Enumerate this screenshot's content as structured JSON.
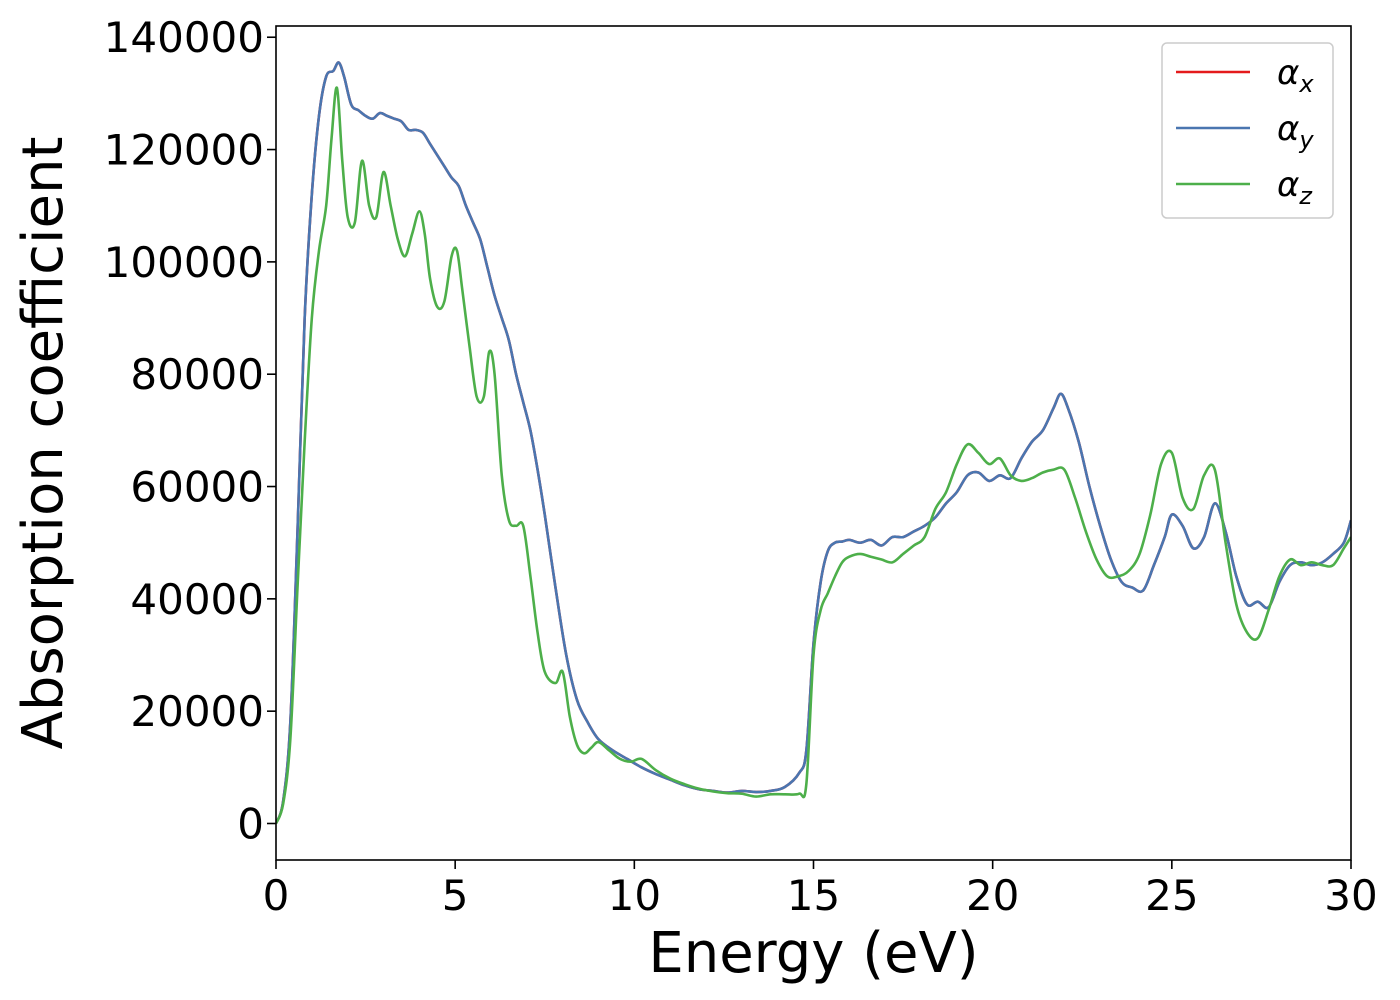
{
  "chart_data": {
    "type": "line",
    "title": "",
    "xlabel": "Energy (eV)",
    "ylabel": "Absorption coefficient",
    "xlim": [
      0,
      30
    ],
    "ylim": [
      -6500,
      142000
    ],
    "x_ticks": [
      0,
      5,
      10,
      15,
      20,
      25,
      30
    ],
    "y_ticks": [
      0,
      20000,
      40000,
      60000,
      80000,
      100000,
      120000,
      140000
    ],
    "grid": false,
    "legend_position": "top-right",
    "series": [
      {
        "name": "α_x",
        "label_base": "α",
        "label_sub": "x",
        "color": "#e41a1c",
        "x": [
          0,
          0.2,
          0.4,
          0.6,
          0.8,
          1.0,
          1.2,
          1.4,
          1.6,
          1.75,
          1.9,
          2.1,
          2.3,
          2.5,
          2.7,
          2.9,
          3.1,
          3.3,
          3.5,
          3.7,
          3.9,
          4.1,
          4.3,
          4.5,
          4.7,
          4.9,
          5.1,
          5.3,
          5.5,
          5.7,
          5.9,
          6.1,
          6.3,
          6.5,
          6.7,
          6.9,
          7.1,
          7.3,
          7.5,
          7.8,
          8.1,
          8.4,
          8.7,
          9.0,
          9.4,
          9.8,
          10.2,
          10.6,
          11.0,
          11.4,
          11.8,
          12.2,
          12.6,
          13.0,
          13.4,
          13.8,
          14.2,
          14.6,
          14.8,
          15.0,
          15.2,
          15.4,
          15.6,
          15.8,
          16.0,
          16.3,
          16.6,
          16.9,
          17.2,
          17.5,
          17.8,
          18.1,
          18.4,
          18.7,
          19.0,
          19.3,
          19.6,
          19.9,
          20.2,
          20.5,
          20.8,
          21.1,
          21.4,
          21.7,
          21.9,
          22.1,
          22.4,
          22.7,
          23.0,
          23.3,
          23.6,
          23.9,
          24.2,
          24.5,
          24.8,
          25.0,
          25.3,
          25.6,
          25.9,
          26.2,
          26.5,
          26.8,
          27.1,
          27.4,
          27.7,
          28.0,
          28.3,
          28.6,
          28.9,
          29.2,
          29.5,
          29.8,
          30.0
        ],
        "y": [
          0,
          4000,
          18000,
          52000,
          90000,
          112000,
          126000,
          133000,
          134000,
          135500,
          133000,
          128000,
          127000,
          126000,
          125500,
          126500,
          126000,
          125500,
          125000,
          123500,
          123500,
          123000,
          121000,
          119000,
          117000,
          115000,
          113500,
          110000,
          107000,
          104000,
          99000,
          94000,
          90000,
          86000,
          80000,
          75000,
          70000,
          63000,
          55000,
          42000,
          30000,
          22000,
          18000,
          15000,
          13000,
          11500,
          10000,
          8800,
          7800,
          6800,
          6100,
          5800,
          5500,
          5800,
          5600,
          5800,
          6500,
          9000,
          13000,
          32000,
          43000,
          48500,
          50000,
          50200,
          50500,
          50000,
          50500,
          49500,
          51000,
          51000,
          52000,
          53000,
          54500,
          57000,
          59000,
          62000,
          62500,
          61000,
          62000,
          61500,
          65000,
          68000,
          70000,
          74000,
          76500,
          74000,
          68000,
          60000,
          53000,
          47000,
          43000,
          42000,
          41500,
          46000,
          51000,
          55000,
          53000,
          49000,
          51000,
          57000,
          52000,
          44000,
          39000,
          39500,
          38500,
          43000,
          46000,
          46500,
          46000,
          46500,
          48000,
          50000,
          54000
        ]
      },
      {
        "name": "α_y",
        "label_base": "α",
        "label_sub": "y",
        "color": "#4a76b0",
        "x": [
          0,
          0.2,
          0.4,
          0.6,
          0.8,
          1.0,
          1.2,
          1.4,
          1.6,
          1.75,
          1.9,
          2.1,
          2.3,
          2.5,
          2.7,
          2.9,
          3.1,
          3.3,
          3.5,
          3.7,
          3.9,
          4.1,
          4.3,
          4.5,
          4.7,
          4.9,
          5.1,
          5.3,
          5.5,
          5.7,
          5.9,
          6.1,
          6.3,
          6.5,
          6.7,
          6.9,
          7.1,
          7.3,
          7.5,
          7.8,
          8.1,
          8.4,
          8.7,
          9.0,
          9.4,
          9.8,
          10.2,
          10.6,
          11.0,
          11.4,
          11.8,
          12.2,
          12.6,
          13.0,
          13.4,
          13.8,
          14.2,
          14.6,
          14.8,
          15.0,
          15.2,
          15.4,
          15.6,
          15.8,
          16.0,
          16.3,
          16.6,
          16.9,
          17.2,
          17.5,
          17.8,
          18.1,
          18.4,
          18.7,
          19.0,
          19.3,
          19.6,
          19.9,
          20.2,
          20.5,
          20.8,
          21.1,
          21.4,
          21.7,
          21.9,
          22.1,
          22.4,
          22.7,
          23.0,
          23.3,
          23.6,
          23.9,
          24.2,
          24.5,
          24.8,
          25.0,
          25.3,
          25.6,
          25.9,
          26.2,
          26.5,
          26.8,
          27.1,
          27.4,
          27.7,
          28.0,
          28.3,
          28.6,
          28.9,
          29.2,
          29.5,
          29.8,
          30.0
        ],
        "y": [
          0,
          4000,
          18000,
          52000,
          90000,
          112000,
          126000,
          133000,
          134000,
          135500,
          133000,
          128000,
          127000,
          126000,
          125500,
          126500,
          126000,
          125500,
          125000,
          123500,
          123500,
          123000,
          121000,
          119000,
          117000,
          115000,
          113500,
          110000,
          107000,
          104000,
          99000,
          94000,
          90000,
          86000,
          80000,
          75000,
          70000,
          63000,
          55000,
          42000,
          30000,
          22000,
          18000,
          15000,
          13000,
          11500,
          10000,
          8800,
          7800,
          6800,
          6100,
          5800,
          5500,
          5800,
          5600,
          5800,
          6500,
          9000,
          13000,
          32000,
          43000,
          48500,
          50000,
          50200,
          50500,
          50000,
          50500,
          49500,
          51000,
          51000,
          52000,
          53000,
          54500,
          57000,
          59000,
          62000,
          62500,
          61000,
          62000,
          61500,
          65000,
          68000,
          70000,
          74000,
          76500,
          74000,
          68000,
          60000,
          53000,
          47000,
          43000,
          42000,
          41500,
          46000,
          51000,
          55000,
          53000,
          49000,
          51000,
          57000,
          52000,
          44000,
          39000,
          39500,
          38500,
          43000,
          46000,
          46500,
          46000,
          46500,
          48000,
          50000,
          54000
        ]
      },
      {
        "name": "α_z",
        "label_base": "α",
        "label_sub": "z",
        "color": "#4daf4a",
        "x": [
          0,
          0.2,
          0.4,
          0.6,
          0.8,
          1.0,
          1.2,
          1.4,
          1.55,
          1.7,
          1.85,
          2.0,
          2.2,
          2.4,
          2.6,
          2.8,
          3.0,
          3.2,
          3.4,
          3.6,
          3.8,
          4.0,
          4.15,
          4.3,
          4.5,
          4.7,
          4.9,
          5.05,
          5.2,
          5.4,
          5.6,
          5.8,
          5.95,
          6.1,
          6.3,
          6.5,
          6.7,
          6.9,
          7.1,
          7.3,
          7.5,
          7.8,
          8.0,
          8.2,
          8.4,
          8.6,
          8.8,
          9.0,
          9.3,
          9.6,
          9.9,
          10.2,
          10.6,
          11.0,
          11.4,
          11.8,
          12.2,
          12.6,
          13.0,
          13.4,
          13.8,
          14.2,
          14.6,
          14.8,
          15.0,
          15.2,
          15.4,
          15.6,
          15.8,
          16.0,
          16.3,
          16.6,
          16.9,
          17.2,
          17.5,
          17.8,
          18.1,
          18.4,
          18.7,
          19.0,
          19.3,
          19.6,
          19.9,
          20.2,
          20.5,
          20.8,
          21.1,
          21.4,
          21.7,
          22.0,
          22.3,
          22.6,
          22.9,
          23.2,
          23.5,
          23.8,
          24.1,
          24.4,
          24.7,
          25.0,
          25.3,
          25.6,
          25.9,
          26.2,
          26.5,
          26.8,
          27.1,
          27.4,
          27.7,
          28.0,
          28.3,
          28.6,
          28.9,
          29.2,
          29.5,
          29.8,
          30.0
        ],
        "y": [
          0,
          3500,
          15000,
          42000,
          68000,
          90000,
          102000,
          110000,
          122000,
          131000,
          118000,
          108000,
          107000,
          118000,
          110000,
          108000,
          116000,
          110000,
          104000,
          101000,
          105000,
          109000,
          105000,
          97000,
          92000,
          93000,
          101000,
          102000,
          95000,
          85000,
          76000,
          76000,
          84000,
          80000,
          62000,
          54000,
          53000,
          53000,
          44000,
          34000,
          27000,
          25000,
          27000,
          19000,
          14000,
          12500,
          13500,
          14500,
          13000,
          11500,
          11000,
          11500,
          9500,
          8000,
          7000,
          6200,
          5700,
          5400,
          5300,
          4800,
          5200,
          5200,
          5300,
          7000,
          30000,
          38000,
          41000,
          44000,
          46500,
          47500,
          48000,
          47500,
          47000,
          46500,
          48000,
          49500,
          51000,
          56000,
          59000,
          64000,
          67500,
          66000,
          64000,
          65000,
          62000,
          61000,
          61500,
          62500,
          63000,
          63000,
          58000,
          52000,
          47000,
          44000,
          44000,
          45000,
          48000,
          55000,
          64000,
          66000,
          58000,
          56000,
          62000,
          63000,
          50000,
          39000,
          34000,
          33000,
          38000,
          44000,
          47000,
          46000,
          46500,
          46000,
          46000,
          49000,
          51000
        ]
      }
    ]
  }
}
